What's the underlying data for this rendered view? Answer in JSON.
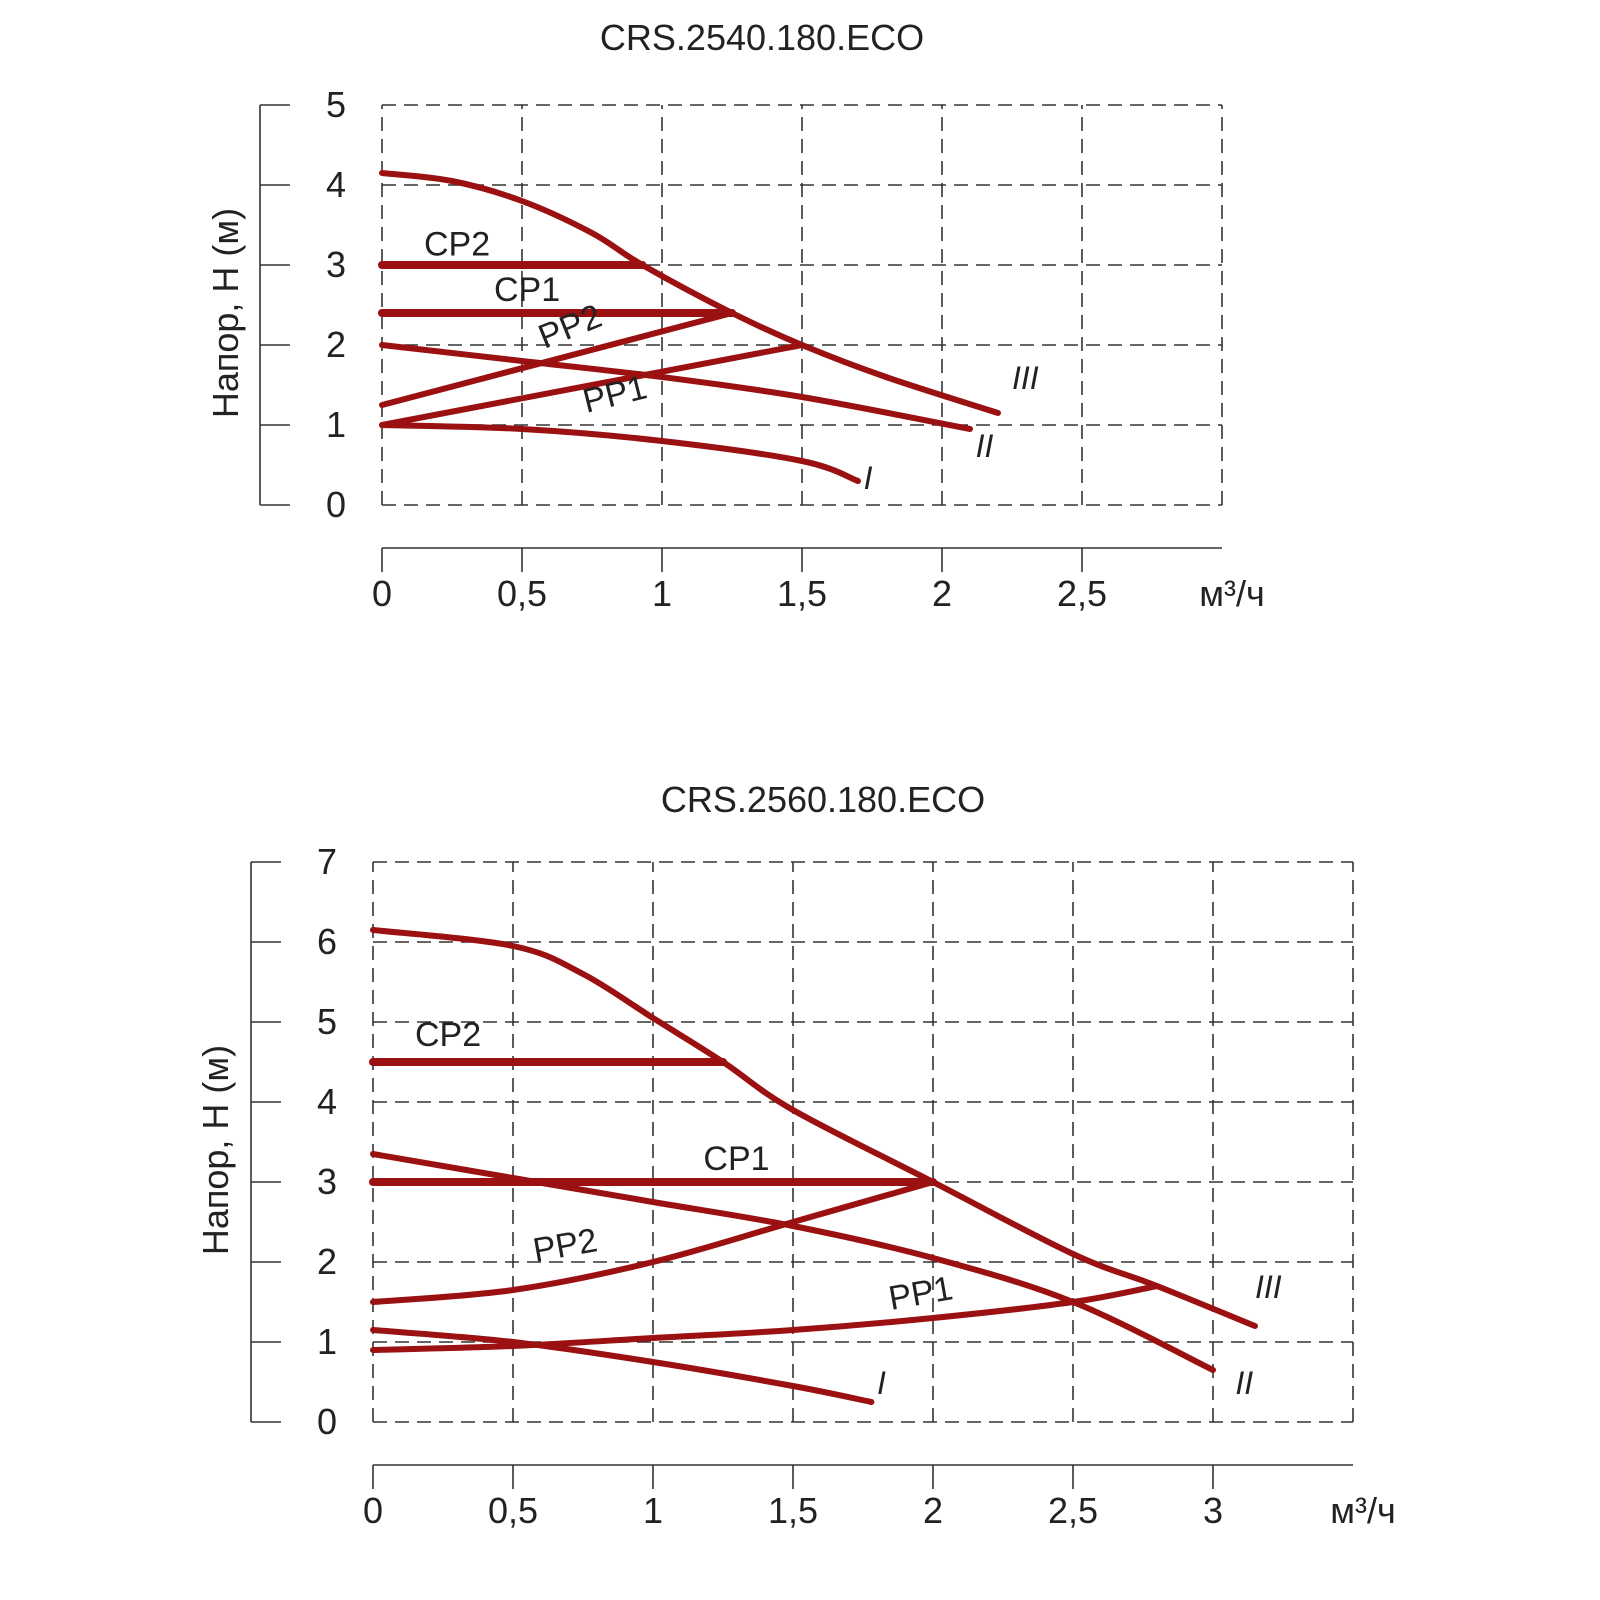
{
  "chart_data": [
    {
      "type": "line",
      "title": "CRS.2540.180.ECO",
      "ylabel": "Напор, Н (м)",
      "xlabel": "м³/ч",
      "xlim": [
        0,
        3
      ],
      "ylim": [
        0,
        5
      ],
      "grid": true,
      "x_ticks": [
        "0",
        "0,5",
        "1",
        "1,5",
        "2",
        "2,5"
      ],
      "y_ticks": [
        "0",
        "1",
        "2",
        "3",
        "4",
        "5"
      ],
      "series": [
        {
          "name": "III",
          "x": [
            0,
            0.25,
            0.5,
            0.75,
            0.93,
            1.25,
            1.5,
            1.8,
            2.2
          ],
          "y": [
            4.15,
            4.05,
            3.8,
            3.4,
            3.0,
            2.4,
            2.0,
            1.6,
            1.15
          ]
        },
        {
          "name": "II",
          "x": [
            0,
            0.5,
            1,
            1.5,
            2.1
          ],
          "y": [
            2.0,
            1.8,
            1.6,
            1.35,
            0.95
          ]
        },
        {
          "name": "I",
          "x": [
            0,
            0.5,
            1,
            1.5,
            1.7
          ],
          "y": [
            1.0,
            0.95,
            0.8,
            0.55,
            0.3
          ]
        },
        {
          "name": "CP2",
          "x": [
            0,
            0.93
          ],
          "y": [
            3.0,
            3.0
          ]
        },
        {
          "name": "CP1",
          "x": [
            0,
            1.25
          ],
          "y": [
            2.4,
            2.4
          ]
        },
        {
          "name": "PP2",
          "x": [
            0,
            1.25
          ],
          "y": [
            1.25,
            2.4
          ]
        },
        {
          "name": "PP1",
          "x": [
            0,
            1.5
          ],
          "y": [
            1.0,
            2.0
          ]
        }
      ]
    },
    {
      "type": "line",
      "title": "CRS.2560.180.ECO",
      "ylabel": "Напор, Н (м)",
      "xlabel": "м³/ч",
      "xlim": [
        0,
        3.5
      ],
      "ylim": [
        0,
        7
      ],
      "grid": true,
      "x_ticks": [
        "0",
        "0,5",
        "1",
        "1,5",
        "2",
        "2,5",
        "3"
      ],
      "y_ticks": [
        "0",
        "1",
        "2",
        "3",
        "4",
        "5",
        "6",
        "7"
      ],
      "series": [
        {
          "name": "III",
          "x": [
            0,
            0.5,
            0.75,
            1,
            1.25,
            1.5,
            2,
            2.5,
            2.8,
            3.15
          ],
          "y": [
            6.15,
            5.95,
            5.6,
            5.05,
            4.5,
            3.9,
            3.0,
            2.1,
            1.7,
            1.2
          ]
        },
        {
          "name": "II",
          "x": [
            0,
            0.5,
            1,
            1.5,
            2,
            2.5,
            3
          ],
          "y": [
            3.35,
            3.05,
            2.75,
            2.45,
            2.05,
            1.5,
            0.65
          ]
        },
        {
          "name": "I",
          "x": [
            0,
            0.5,
            1,
            1.5,
            1.78
          ],
          "y": [
            1.15,
            1.0,
            0.75,
            0.45,
            0.25
          ]
        },
        {
          "name": "CP2",
          "x": [
            0,
            1.25
          ],
          "y": [
            4.5,
            4.5
          ]
        },
        {
          "name": "CP1",
          "x": [
            0,
            2
          ],
          "y": [
            3.0,
            3.0
          ]
        },
        {
          "name": "PP2",
          "x": [
            0,
            0.5,
            1,
            1.5,
            2
          ],
          "y": [
            1.5,
            1.65,
            2.0,
            2.5,
            3.0
          ]
        },
        {
          "name": "PP1",
          "x": [
            0,
            0.5,
            1,
            1.5,
            2,
            2.5,
            2.8
          ],
          "y": [
            0.9,
            0.95,
            1.05,
            1.15,
            1.3,
            1.5,
            1.7
          ]
        }
      ]
    }
  ]
}
